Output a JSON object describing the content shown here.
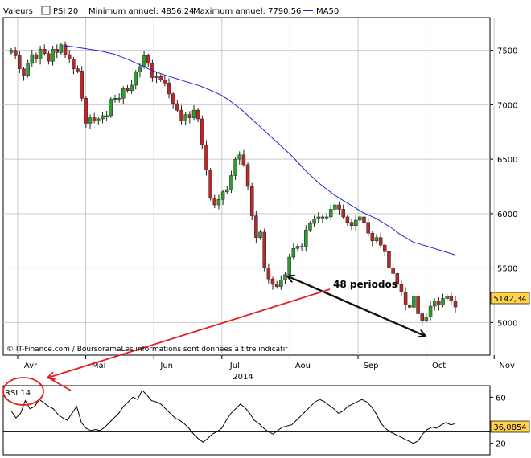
{
  "header": {
    "label_prefix": "Valeurs",
    "series_name": "PSI 20",
    "min_text": "Minimum annuel: 4856,24",
    "max_text": "Maximum annuel: 7790,56",
    "ma_label": "MA50"
  },
  "colors": {
    "up": "#2e9d2e",
    "down": "#b82828",
    "ma": "#2222cc",
    "grid": "#c9c9c9",
    "annotation_black": "#111111",
    "annotation_red": "#e02020",
    "last_price_bg": "#ffd24d"
  },
  "credits": "© IT-Finance.com / BoursoramaLes informations sont données à titre indicatif",
  "annotation_text": "48 periodos",
  "chart_data": [
    {
      "type": "candlestick",
      "title": "PSI 20",
      "year_label": "2014",
      "x_tick_labels": [
        "Avr",
        "Mai",
        "Jun",
        "Jul",
        "Aou",
        "Sep",
        "Oct",
        "Nov"
      ],
      "y_tick_labels": [
        "5000",
        "5500",
        "6000",
        "6500",
        "7000",
        "7500"
      ],
      "ylim": [
        4700,
        7800
      ],
      "last_value_label": "5142,34",
      "closes": [
        7500,
        7450,
        7330,
        7270,
        7380,
        7460,
        7420,
        7510,
        7470,
        7400,
        7510,
        7480,
        7550,
        7460,
        7420,
        7330,
        7310,
        7060,
        6830,
        6880,
        6850,
        6870,
        6900,
        6900,
        7050,
        7060,
        7060,
        7150,
        7130,
        7180,
        7300,
        7350,
        7450,
        7380,
        7250,
        7260,
        7230,
        7200,
        7100,
        7010,
        6950,
        6850,
        6910,
        6880,
        6950,
        6870,
        6630,
        6400,
        6140,
        6080,
        6130,
        6200,
        6220,
        6350,
        6500,
        6540,
        6450,
        6250,
        5980,
        5780,
        5830,
        5500,
        5400,
        5350,
        5330,
        5390,
        5440,
        5600,
        5680,
        5700,
        5700,
        5850,
        5910,
        5950,
        5970,
        5960,
        5970,
        6040,
        6080,
        6040,
        5970,
        5920,
        5890,
        5940,
        5970,
        5920,
        5820,
        5750,
        5780,
        5710,
        5650,
        5500,
        5450,
        5350,
        5280,
        5160,
        5140,
        5240,
        5080,
        5020,
        5050,
        5150,
        5200,
        5160,
        5220,
        5240,
        5200,
        5142
      ],
      "ma50": [
        7540,
        7535,
        7525,
        7515,
        7505,
        7495,
        7480,
        7465,
        7440,
        7415,
        7385,
        7355,
        7325,
        7300,
        7275,
        7255,
        7235,
        7215,
        7195,
        7175,
        7150,
        7120,
        7090,
        7050,
        7000,
        6950,
        6890,
        6830,
        6770,
        6710,
        6650,
        6590,
        6530,
        6460,
        6390,
        6330,
        6270,
        6220,
        6170,
        6130,
        6090,
        6050,
        6010,
        5980,
        5950,
        5910,
        5870,
        5820,
        5780,
        5740,
        5720,
        5700,
        5680,
        5660,
        5640,
        5620
      ]
    },
    {
      "type": "line",
      "title": "RSI 14",
      "y_tick_labels": [
        "20",
        "60"
      ],
      "ylim": [
        10,
        70
      ],
      "reference_level": 30,
      "last_value_label": "36,0854",
      "values": [
        48,
        42,
        46,
        57,
        50,
        52,
        58,
        55,
        52,
        50,
        45,
        42,
        40,
        46,
        52,
        38,
        33,
        31,
        32,
        31,
        34,
        38,
        42,
        46,
        52,
        56,
        60,
        58,
        66,
        62,
        57,
        56,
        54,
        50,
        46,
        42,
        40,
        37,
        33,
        28,
        24,
        21,
        24,
        28,
        30,
        33,
        40,
        46,
        50,
        54,
        51,
        46,
        40,
        37,
        33,
        30,
        28,
        31,
        34,
        35,
        36,
        40,
        44,
        48,
        52,
        56,
        58,
        56,
        53,
        50,
        46,
        48,
        52,
        54,
        56,
        58,
        56,
        52,
        46,
        38,
        33,
        30,
        28,
        26,
        24,
        22,
        20,
        22,
        28,
        32,
        34,
        33,
        36,
        38,
        36,
        37
      ]
    }
  ]
}
